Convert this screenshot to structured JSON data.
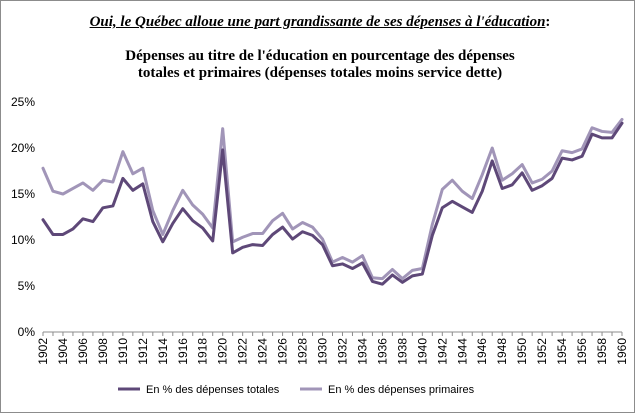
{
  "chart_data": {
    "type": "line",
    "title": "Oui, le Québec alloue une part grandissante de ses dépenses à l'éducation",
    "title_suffix": ":",
    "subtitle_line1": "Dépenses au titre de l'éducation en pourcentage des dépenses",
    "subtitle_line2": "totales et primaires  (dépenses totales moins service dette)",
    "xlabel": "",
    "ylabel": "",
    "ylim": [
      0,
      25
    ],
    "y_ticks": [
      "0%",
      "5%",
      "10%",
      "15%",
      "20%",
      "25%"
    ],
    "x_tick_labels": [
      "1902",
      "1904",
      "1906",
      "1908",
      "1910",
      "1912",
      "1914",
      "1916",
      "1918",
      "1920",
      "1922",
      "1924",
      "1926",
      "1928",
      "1930",
      "1932",
      "1934",
      "1936",
      "1938",
      "1940",
      "1942",
      "1944",
      "1946",
      "1948",
      "1950",
      "1952",
      "1954",
      "1956",
      "1958",
      "1960"
    ],
    "x": [
      1902,
      1903,
      1904,
      1905,
      1906,
      1907,
      1908,
      1909,
      1910,
      1911,
      1912,
      1913,
      1914,
      1915,
      1916,
      1917,
      1918,
      1919,
      1920,
      1921,
      1922,
      1923,
      1924,
      1925,
      1926,
      1927,
      1928,
      1929,
      1930,
      1931,
      1932,
      1933,
      1934,
      1935,
      1936,
      1937,
      1938,
      1939,
      1940,
      1941,
      1942,
      1943,
      1944,
      1945,
      1946,
      1947,
      1948,
      1949,
      1950,
      1951,
      1952,
      1953,
      1954,
      1955,
      1956,
      1957,
      1958,
      1959,
      1960
    ],
    "series": [
      {
        "name": "En % des dépenses totales",
        "color": "#5e4878",
        "values": [
          12.2,
          10.6,
          10.6,
          11.2,
          12.3,
          12.0,
          13.5,
          13.7,
          16.7,
          15.4,
          16.1,
          12.0,
          9.8,
          11.8,
          13.4,
          12.1,
          11.3,
          9.9,
          19.8,
          8.6,
          9.2,
          9.5,
          9.4,
          10.6,
          11.4,
          10.1,
          10.9,
          10.5,
          9.5,
          7.2,
          7.4,
          6.9,
          7.5,
          5.5,
          5.2,
          6.2,
          5.4,
          6.1,
          6.3,
          10.5,
          13.5,
          14.2,
          13.6,
          13.0,
          15.3,
          18.6,
          15.6,
          16.0,
          17.3,
          15.4,
          15.9,
          16.7,
          18.9,
          18.7,
          19.1,
          21.5,
          21.1,
          21.1,
          22.7
        ]
      },
      {
        "name": "En % des dépenses primaires",
        "color": "#a195b8",
        "values": [
          17.8,
          15.3,
          15.0,
          15.6,
          16.2,
          15.4,
          16.5,
          16.3,
          19.6,
          17.2,
          17.8,
          13.2,
          10.6,
          13.2,
          15.4,
          13.8,
          12.8,
          11.3,
          22.1,
          9.8,
          10.3,
          10.7,
          10.7,
          12.1,
          12.9,
          11.2,
          11.9,
          11.4,
          10.1,
          7.6,
          8.1,
          7.6,
          8.3,
          5.9,
          5.8,
          6.8,
          5.8,
          6.7,
          6.9,
          11.7,
          15.5,
          16.5,
          15.3,
          14.5,
          17.1,
          20.0,
          16.5,
          17.2,
          18.2,
          16.2,
          16.6,
          17.5,
          19.7,
          19.5,
          19.9,
          22.2,
          21.8,
          21.7,
          23.1
        ]
      }
    ],
    "legend_position": "bottom"
  }
}
